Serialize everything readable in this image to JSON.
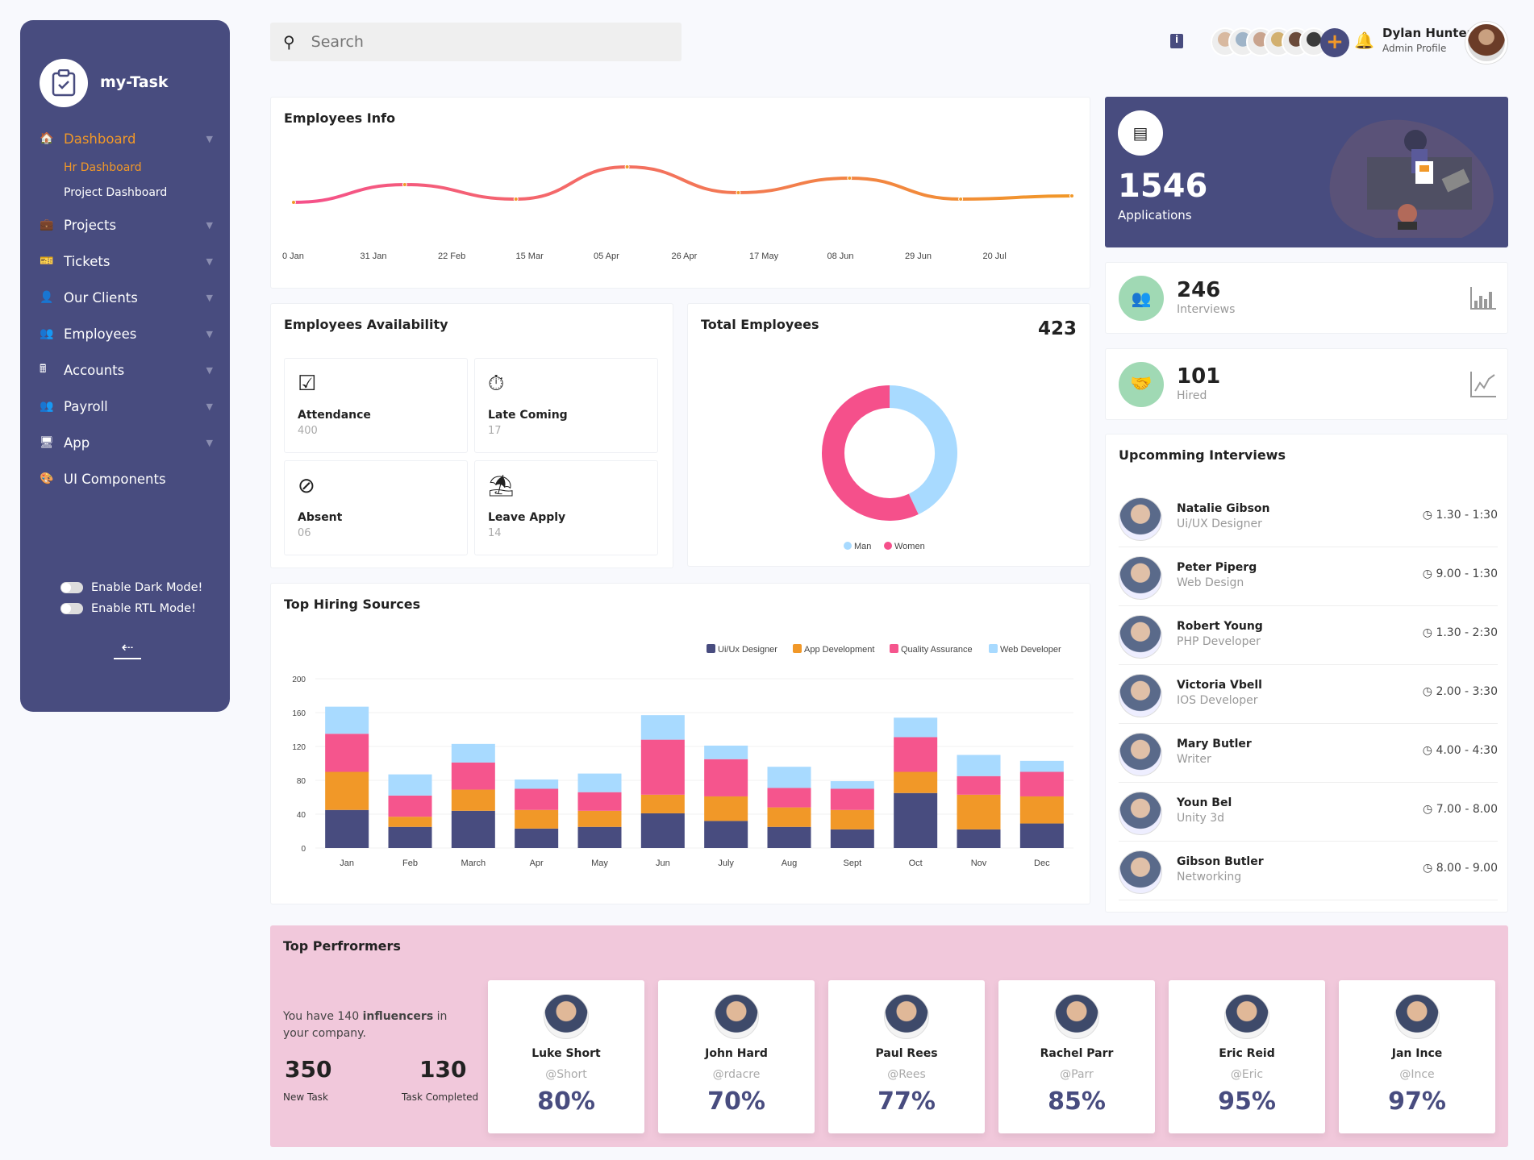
{
  "sidebar": {
    "brand": "my-Task",
    "items": [
      {
        "label": "Dashboard",
        "icon": "home-icon",
        "active": true
      },
      {
        "label": "Projects",
        "icon": "briefcase-icon"
      },
      {
        "label": "Tickets",
        "icon": "ticket-icon"
      },
      {
        "label": "Our Clients",
        "icon": "user-icon"
      },
      {
        "label": "Employees",
        "icon": "users-icon"
      },
      {
        "label": "Accounts",
        "icon": "calculator-icon"
      },
      {
        "label": "Payroll",
        "icon": "users-icon"
      },
      {
        "label": "App",
        "icon": "monitor-icon"
      },
      {
        "label": "UI Components",
        "icon": "palette-icon"
      }
    ],
    "sub": [
      "Hr Dashboard",
      "Project Dashboard"
    ],
    "dark_mode": "Enable Dark Mode!",
    "rtl_mode": "Enable RTL Mode!"
  },
  "header": {
    "search_placeholder": "Search",
    "user_name": "Dylan Hunter",
    "user_role": "Admin Profile"
  },
  "employees_info": {
    "title": "Employees Info"
  },
  "availability": {
    "title": "Employees Availability",
    "tiles": [
      {
        "label": "Attendance",
        "value": "400",
        "icon": "check-square-icon"
      },
      {
        "label": "Late Coming",
        "value": "17",
        "icon": "stopwatch-icon"
      },
      {
        "label": "Absent",
        "value": "06",
        "icon": "ban-icon"
      },
      {
        "label": "Leave Apply",
        "value": "14",
        "icon": "beach-umbrella-icon"
      }
    ]
  },
  "total_employees": {
    "title": "Total Employees",
    "total": "423"
  },
  "hiring": {
    "title": "Top Hiring Sources"
  },
  "applications": {
    "value": "1546",
    "label": "Applications"
  },
  "interviews": {
    "value": "246",
    "label": "Interviews"
  },
  "hired": {
    "value": "101",
    "label": "Hired"
  },
  "upcoming": {
    "title": "Upcomming Interviews",
    "items": [
      {
        "name": "Natalie Gibson",
        "role": "Ui/UX Designer",
        "time": "1.30 - 1:30"
      },
      {
        "name": "Peter Piperg",
        "role": "Web Design",
        "time": "9.00 - 1:30"
      },
      {
        "name": "Robert Young",
        "role": "PHP Developer",
        "time": "1.30 - 2:30"
      },
      {
        "name": "Victoria Vbell",
        "role": "IOS Developer",
        "time": "2.00 - 3:30"
      },
      {
        "name": "Mary Butler",
        "role": "Writer",
        "time": "4.00 - 4:30"
      },
      {
        "name": "Youn Bel",
        "role": "Unity 3d",
        "time": "7.00 - 8.00"
      },
      {
        "name": "Gibson Butler",
        "role": "Networking",
        "time": "8.00 - 9.00"
      }
    ]
  },
  "performers": {
    "title": "Top Perfrormers",
    "intro_pre": "You have 140 ",
    "intro_bold": "influencers",
    "intro_post": " in your company.",
    "new_task": "350",
    "new_task_label": "New Task",
    "completed": "130",
    "completed_label": "Task Completed",
    "people": [
      {
        "name": "Luke Short",
        "handle": "@Short",
        "pct": "80%"
      },
      {
        "name": "John Hard",
        "handle": "@rdacre",
        "pct": "70%"
      },
      {
        "name": "Paul Rees",
        "handle": "@Rees",
        "pct": "77%"
      },
      {
        "name": "Rachel Parr",
        "handle": "@Parr",
        "pct": "85%"
      },
      {
        "name": "Eric Reid",
        "handle": "@Eric",
        "pct": "95%"
      },
      {
        "name": "Jan Ince",
        "handle": "@Ince",
        "pct": "97%"
      }
    ]
  },
  "chart_data": [
    {
      "type": "line",
      "title": "Employees Info",
      "x": [
        "0 Jan",
        "31 Jan",
        "22 Feb",
        "15 Mar",
        "05 Apr",
        "26 Apr",
        "17 May",
        "08 Jun",
        "29 Jun",
        "20 Jul"
      ],
      "points": [
        20,
        31,
        22,
        42,
        26,
        35,
        22,
        24
      ],
      "colors": [
        "#f5508b",
        "#f19828"
      ]
    },
    {
      "type": "pie",
      "title": "Total Employees",
      "labels": [
        "Man",
        "Women"
      ],
      "values": [
        43,
        57
      ],
      "colors": [
        "#a8daff",
        "#f5508b"
      ]
    },
    {
      "type": "bar",
      "title": "Top Hiring Sources",
      "categories": [
        "Jan",
        "Feb",
        "March",
        "Apr",
        "May",
        "Jun",
        "July",
        "Aug",
        "Sept",
        "Oct",
        "Nov",
        "Dec"
      ],
      "ylim": [
        0,
        200
      ],
      "yticks": [
        "0",
        "40",
        "80",
        "120",
        "160",
        "200"
      ],
      "legend": "top-right",
      "series": [
        {
          "name": "Ui/Ux Designer",
          "color": "#484c7f",
          "values": [
            45,
            25,
            44,
            23,
            25,
            41,
            32,
            25,
            22,
            65,
            22,
            29
          ]
        },
        {
          "name": "App Development",
          "color": "#f19828",
          "values": [
            45,
            12,
            25,
            22,
            19,
            22,
            29,
            23,
            23,
            25,
            41,
            32
          ]
        },
        {
          "name": "Quality Assurance",
          "color": "#f5558d",
          "values": [
            45,
            25,
            32,
            25,
            22,
            65,
            44,
            23,
            25,
            41,
            22,
            29
          ]
        },
        {
          "name": "Web Developer",
          "color": "#a8daff",
          "values": [
            32,
            25,
            22,
            11,
            22,
            29,
            16,
            25,
            9,
            23,
            25,
            13
          ]
        }
      ]
    }
  ]
}
